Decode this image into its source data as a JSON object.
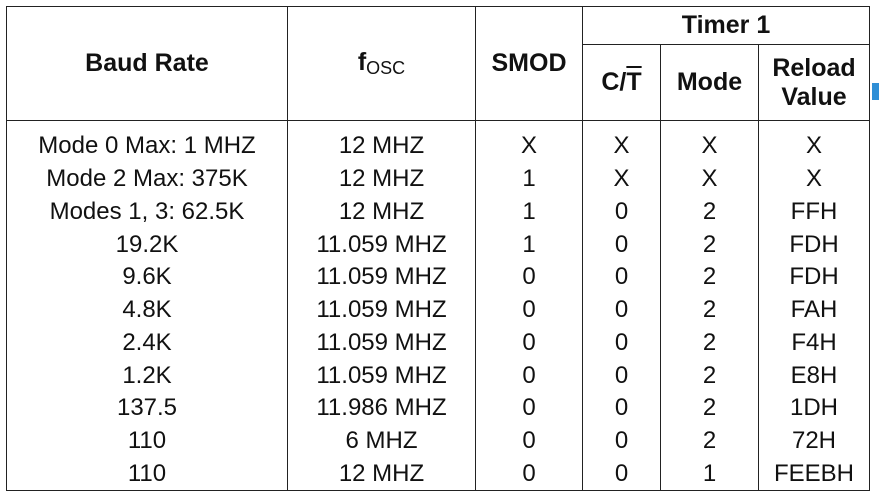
{
  "headers": {
    "baud_rate": "Baud Rate",
    "fosc_f": "f",
    "fosc_sub": "OSC",
    "smod": "SMOD",
    "timer_group": "Timer 1",
    "ct_c": "C/",
    "ct_t": "T",
    "mode": "Mode",
    "reload_line1": "Reload",
    "reload_line2": "Value"
  },
  "rows": [
    {
      "baud": "Mode 0 Max: 1 MHZ",
      "fosc": "12 MHZ",
      "smod": "X",
      "ct": "X",
      "mode": "X",
      "reload": "X"
    },
    {
      "baud": "Mode 2 Max: 375K",
      "fosc": "12 MHZ",
      "smod": "1",
      "ct": "X",
      "mode": "X",
      "reload": "X"
    },
    {
      "baud": "Modes 1, 3: 62.5K",
      "fosc": "12 MHZ",
      "smod": "1",
      "ct": "0",
      "mode": "2",
      "reload": "FFH"
    },
    {
      "baud": "19.2K",
      "fosc": "11.059 MHZ",
      "smod": "1",
      "ct": "0",
      "mode": "2",
      "reload": "FDH"
    },
    {
      "baud": "9.6K",
      "fosc": "11.059 MHZ",
      "smod": "0",
      "ct": "0",
      "mode": "2",
      "reload": "FDH"
    },
    {
      "baud": "4.8K",
      "fosc": "11.059 MHZ",
      "smod": "0",
      "ct": "0",
      "mode": "2",
      "reload": "FAH"
    },
    {
      "baud": "2.4K",
      "fosc": "11.059 MHZ",
      "smod": "0",
      "ct": "0",
      "mode": "2",
      "reload": "F4H"
    },
    {
      "baud": "1.2K",
      "fosc": "11.059 MHZ",
      "smod": "0",
      "ct": "0",
      "mode": "2",
      "reload": "E8H"
    },
    {
      "baud": "137.5",
      "fosc": "11.986 MHZ",
      "smod": "0",
      "ct": "0",
      "mode": "2",
      "reload": "1DH"
    },
    {
      "baud": "110",
      "fosc": "6 MHZ",
      "smod": "0",
      "ct": "0",
      "mode": "2",
      "reload": "72H"
    },
    {
      "baud": "110",
      "fosc": "12 MHZ",
      "smod": "0",
      "ct": "0",
      "mode": "1",
      "reload": "FEEBH"
    }
  ]
}
